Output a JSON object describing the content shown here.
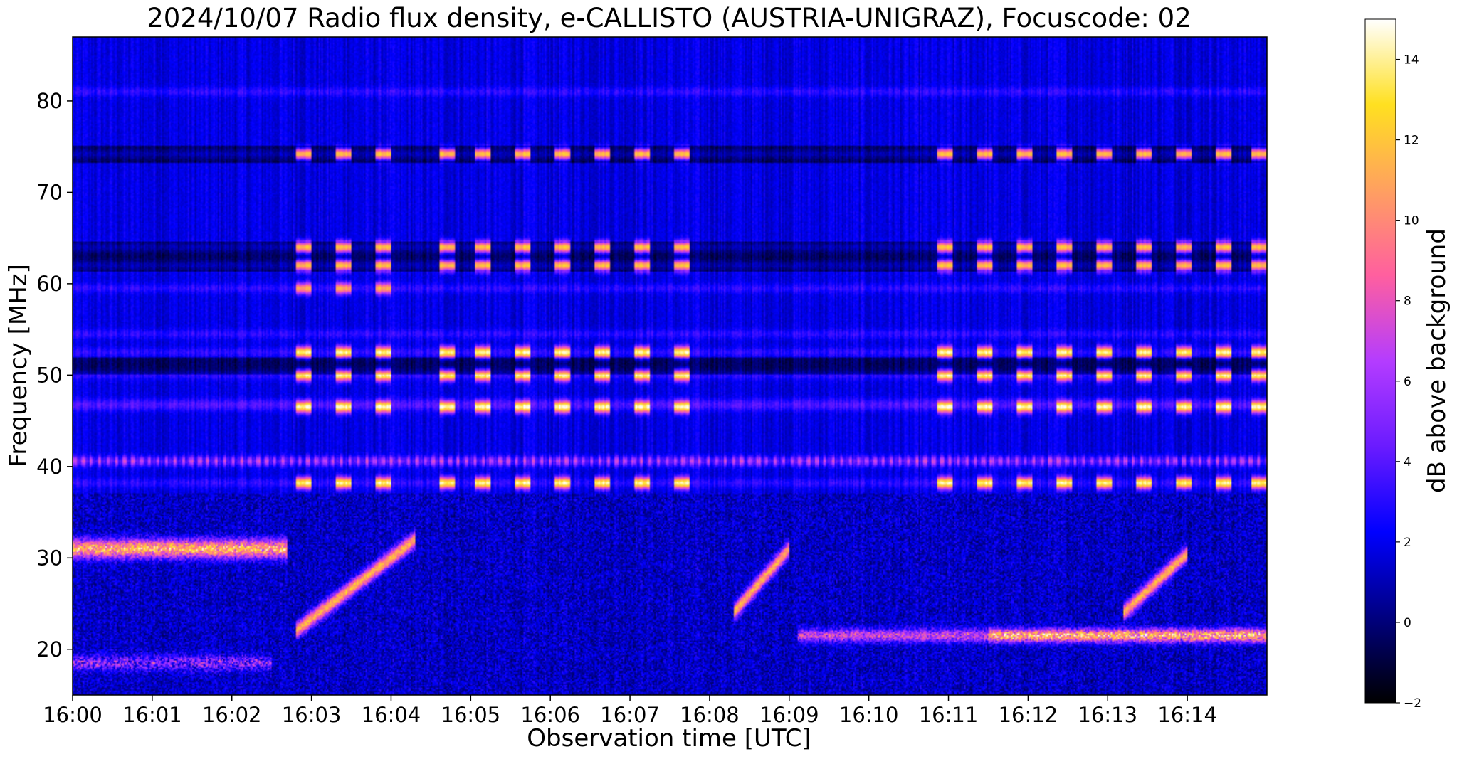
{
  "chart_data": {
    "type": "heatmap",
    "title": "2024/10/07  Radio flux density, e-CALLISTO (AUSTRIA-UNIGRAZ), Focuscode: 02",
    "xlabel": "Observation time [UTC]",
    "ylabel": "Frequency [MHz]",
    "x_ticks": [
      "16:00",
      "16:01",
      "16:02",
      "16:03",
      "16:04",
      "16:05",
      "16:06",
      "16:07",
      "16:08",
      "16:09",
      "16:10",
      "16:11",
      "16:12",
      "16:13",
      "16:14"
    ],
    "y_ticks": [
      20,
      30,
      40,
      50,
      60,
      70,
      80
    ],
    "x_range_minutes_after_1600": [
      0,
      15
    ],
    "y_range_mhz": [
      15,
      87
    ],
    "colorbar": {
      "label": "dB above background",
      "range": [
        -2,
        15
      ],
      "ticks": [
        -2,
        0,
        2,
        4,
        6,
        8,
        10,
        12,
        14
      ],
      "colormap": "gnuplot2",
      "stops": [
        "#000000",
        "#000080",
        "#0000ff",
        "#6a1bff",
        "#b43cff",
        "#ff5f9f",
        "#ffa060",
        "#ffe020",
        "#ffffff"
      ]
    },
    "grid": false,
    "features": {
      "periodic_bursts_start_min": [
        2.8,
        3.3,
        3.8,
        4.6,
        5.05,
        5.55,
        6.05,
        6.55,
        7.05,
        7.55,
        10.85,
        11.35,
        11.85,
        12.35,
        12.85,
        13.35,
        13.85,
        14.35,
        14.8
      ],
      "horizontal_bands_mhz": [
        81,
        74.2,
        62,
        64,
        59.5,
        54.5,
        52.5,
        50,
        47,
        46.5,
        40.6,
        38.2
      ],
      "strong_band_early_mhz": 31,
      "strong_band_late_mhz": 21.5,
      "drifting_features": [
        {
          "t_start": 2.8,
          "t_end": 4.3,
          "f_start": 22,
          "f_end": 32
        },
        {
          "t_start": 8.3,
          "t_end": 9.0,
          "f_start": 24,
          "f_end": 31
        },
        {
          "t_start": 13.2,
          "t_end": 14.0,
          "f_start": 24,
          "f_end": 30.5
        }
      ]
    }
  }
}
